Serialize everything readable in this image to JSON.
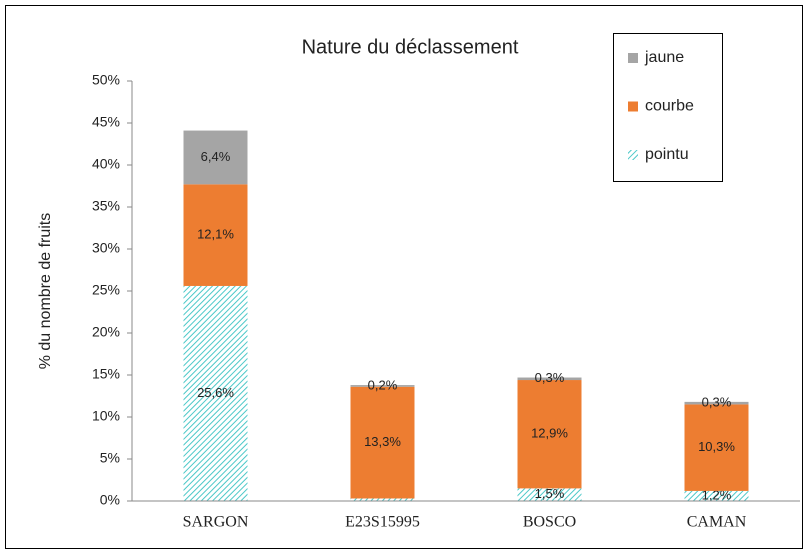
{
  "chart_data": {
    "type": "stacked_bar",
    "title": "Nature du déclassement",
    "y_label": "% du nombre de fruits",
    "categories": [
      "SARGON",
      "E23S15995",
      "BOSCO",
      "CAMAN"
    ],
    "series": [
      {
        "name": "pointu",
        "color": "#4bc8c8",
        "pattern": "hatch",
        "values": [
          25.6,
          0.3,
          1.5,
          1.2
        ],
        "value_labels": [
          "25,6%",
          null,
          "1,5%",
          "1,2%"
        ]
      },
      {
        "name": "courbe",
        "color": "#ed7d31",
        "values": [
          12.1,
          13.3,
          12.9,
          10.3
        ],
        "value_labels": [
          "12,1%",
          "13,3%",
          "12,9%",
          "10,3%"
        ]
      },
      {
        "name": "jaune",
        "color": "#a5a5a5",
        "values": [
          6.4,
          0.2,
          0.3,
          0.3
        ],
        "value_labels": [
          "6,4%",
          "0,2%",
          "0,3%",
          "0,3%"
        ]
      }
    ],
    "ylim": [
      0,
      50
    ],
    "yticks": [
      {
        "value": 0,
        "label": "0%"
      },
      {
        "value": 5,
        "label": "5%"
      },
      {
        "value": 10,
        "label": "10%"
      },
      {
        "value": 15,
        "label": "15%"
      },
      {
        "value": 20,
        "label": "20%"
      },
      {
        "value": 25,
        "label": "25%"
      },
      {
        "value": 30,
        "label": "30%"
      },
      {
        "value": 35,
        "label": "35%"
      },
      {
        "value": 40,
        "label": "40%"
      },
      {
        "value": 45,
        "label": "45%"
      },
      {
        "value": 50,
        "label": "50%"
      }
    ],
    "legend": "top-right"
  }
}
